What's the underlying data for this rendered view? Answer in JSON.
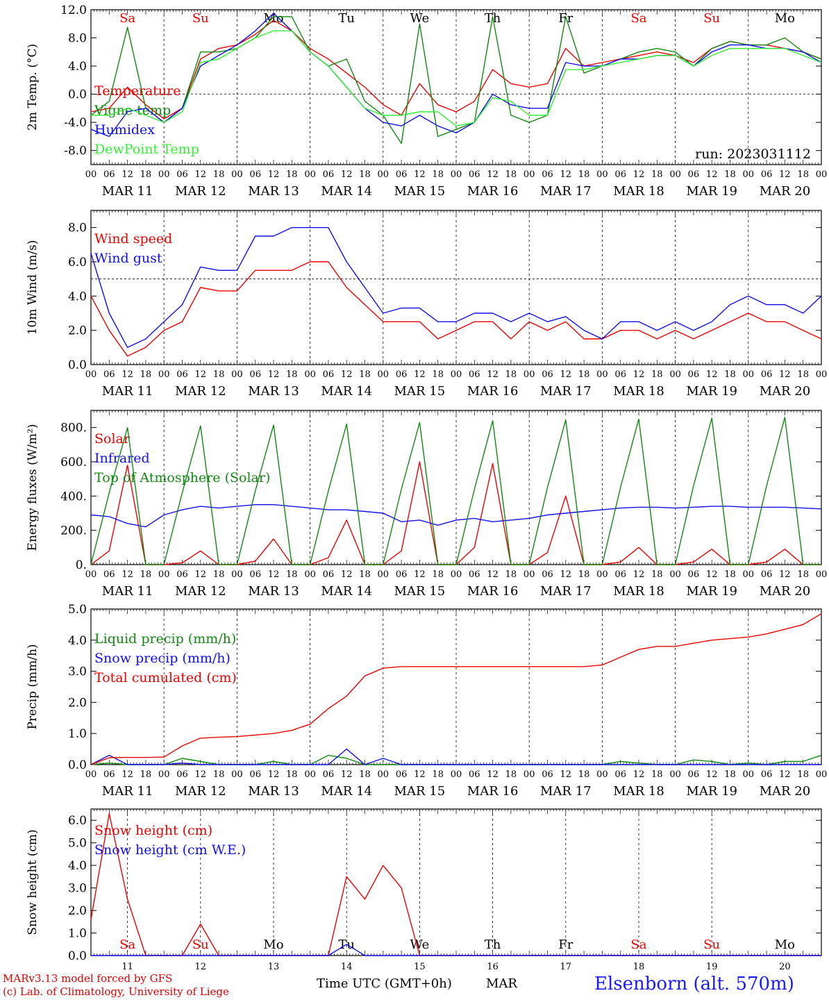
{
  "colors": {
    "red": "#ee0000",
    "green": "#118811",
    "blue": "#1010ee",
    "lightgreen": "#33ee33"
  },
  "x_hour_labels": [
    "00",
    "06",
    "12",
    "18"
  ],
  "date_labels": [
    "MAR 11",
    "MAR 12",
    "MAR 13",
    "MAR 14",
    "MAR 15",
    "MAR 16",
    "MAR 17",
    "MAR 18",
    "MAR 19",
    "MAR 20"
  ],
  "day_names": [
    {
      "label": "Sa",
      "weekend": true
    },
    {
      "label": "Su",
      "weekend": true
    },
    {
      "label": "Mo",
      "weekend": false
    },
    {
      "label": "Tu",
      "weekend": false
    },
    {
      "label": "We",
      "weekend": false
    },
    {
      "label": "Th",
      "weekend": false
    },
    {
      "label": "Fr",
      "weekend": false
    },
    {
      "label": "Sa",
      "weekend": true
    },
    {
      "label": "Su",
      "weekend": true
    },
    {
      "label": "Mo",
      "weekend": false
    }
  ],
  "bottom_day_numbers": [
    "11",
    "12",
    "13",
    "14",
    "15",
    "16",
    "17",
    "18",
    "19",
    "20"
  ],
  "footer": {
    "credit_line1": "MARv3.13 model forced by GFS",
    "credit_line2": "(c) Lab. of Climatology, University of Liege",
    "x_title": "Time UTC (GMT+0h)",
    "month": "MAR",
    "station": "Elsenborn (alt. 570m)"
  },
  "chart_data": [
    {
      "type": "line",
      "ylabel": "2m Temp. (°C)",
      "ylim": [
        -10,
        12
      ],
      "yticks": [
        "12.0",
        "8.0",
        "4.0",
        "0.0",
        "-4.0",
        "-8.0"
      ],
      "hline": 0,
      "annotation": "run: 2023031112",
      "x_days": [
        0,
        0.25,
        0.5,
        0.75,
        1,
        1.25,
        1.5,
        1.75,
        2,
        2.25,
        2.5,
        2.75,
        3,
        3.25,
        3.5,
        3.75,
        4,
        4.25,
        4.5,
        4.75,
        5,
        5.25,
        5.5,
        5.75,
        6,
        6.25,
        6.5,
        6.75,
        7,
        7.25,
        7.5,
        7.75,
        8,
        8.25,
        8.5,
        8.75,
        9,
        9.25,
        9.5,
        9.75,
        10
      ],
      "series": [
        {
          "name": "Temperature",
          "color": "red",
          "values": [
            -2.5,
            -2,
            1,
            -1.5,
            -3.5,
            -2,
            5,
            6.5,
            7,
            8.5,
            10.5,
            9,
            6.5,
            5,
            3,
            1,
            -1.5,
            -3,
            1.5,
            -1.5,
            -2.5,
            -1,
            3.5,
            1.5,
            1,
            1.5,
            6.5,
            4,
            4.5,
            5,
            5.5,
            6,
            5.5,
            4.5,
            6.5,
            7.5,
            7,
            7,
            6.5,
            6,
            5
          ]
        },
        {
          "name": "Vigne temp",
          "color": "green",
          "values": [
            -3,
            -1,
            9.5,
            -2,
            -4,
            -2,
            6,
            6,
            6.5,
            8,
            11,
            11,
            6,
            4,
            5,
            -1,
            -3,
            -7,
            10,
            -6,
            -5,
            -4,
            11,
            -3,
            -4,
            -3,
            11,
            3,
            4,
            5,
            6,
            6.5,
            6,
            4,
            6.5,
            7.5,
            7,
            7,
            8,
            6,
            5
          ]
        },
        {
          "name": "Humidex",
          "color": "blue",
          "values": [
            -5,
            -6,
            -2.5,
            -2,
            -4,
            -2,
            4,
            5.5,
            7,
            9,
            11.5,
            9,
            6,
            4,
            1,
            -2,
            -4,
            -4.5,
            -3,
            -4.5,
            -5.5,
            -4,
            0,
            -1.5,
            -2,
            -2,
            4.5,
            4,
            4,
            5,
            5,
            5.5,
            5.5,
            4,
            6,
            7,
            7,
            6.5,
            6.5,
            6,
            4.5
          ]
        },
        {
          "name": "DewPoint Temp",
          "color": "lightgreen",
          "values": [
            -3,
            -3,
            -2,
            -3,
            -4,
            -2.5,
            4.5,
            5,
            6.5,
            8,
            9,
            9,
            6,
            4,
            1,
            -2,
            -3,
            -3,
            -2.5,
            -2.5,
            -4.5,
            -4,
            -0.5,
            -1,
            -3,
            -3,
            3.5,
            3.5,
            4,
            4.5,
            5,
            5.5,
            5.5,
            4,
            5.5,
            6.5,
            6.5,
            6.5,
            6.5,
            5.5,
            4.5
          ]
        }
      ]
    },
    {
      "type": "line",
      "ylabel": "10m Wind (m/s)",
      "ylim": [
        0,
        9
      ],
      "yticks": [
        "8.0",
        "6.0",
        "4.0",
        "2.0",
        "0.0"
      ],
      "hline": 5,
      "x_days": [
        0,
        0.25,
        0.5,
        0.75,
        1,
        1.25,
        1.5,
        1.75,
        2,
        2.25,
        2.5,
        2.75,
        3,
        3.25,
        3.5,
        3.75,
        4,
        4.25,
        4.5,
        4.75,
        5,
        5.25,
        5.5,
        5.75,
        6,
        6.25,
        6.5,
        6.75,
        7,
        7.25,
        7.5,
        7.75,
        8,
        8.25,
        8.5,
        8.75,
        9,
        9.25,
        9.5,
        9.75,
        10
      ],
      "series": [
        {
          "name": "Wind speed",
          "color": "red",
          "values": [
            4,
            2,
            0.5,
            1,
            2,
            2.5,
            4.5,
            4.3,
            4.3,
            5.5,
            5.5,
            5.5,
            6,
            6,
            4.5,
            3.5,
            2.5,
            2.5,
            2.5,
            1.5,
            2,
            2.5,
            2.5,
            1.5,
            2.5,
            2,
            2.5,
            1.5,
            1.5,
            2,
            2,
            1.5,
            2,
            1.5,
            2,
            2.5,
            3,
            2.5,
            2.5,
            2,
            1.5
          ]
        },
        {
          "name": "Wind gust",
          "color": "blue",
          "values": [
            6.5,
            3,
            1,
            1.5,
            2.5,
            3.5,
            5.7,
            5.5,
            5.5,
            7.5,
            7.5,
            8,
            8,
            8,
            6,
            4.5,
            3,
            3.3,
            3.3,
            2.5,
            2.5,
            3,
            3,
            2.5,
            3,
            2.5,
            2.8,
            2,
            1.5,
            2.5,
            2.5,
            2,
            2.5,
            2,
            2.5,
            3.5,
            4,
            3.5,
            3.5,
            3,
            4
          ]
        }
      ]
    },
    {
      "type": "line",
      "ylabel": "Energy fluxes (W/m²)",
      "ylim": [
        0,
        900
      ],
      "yticks": [
        "800.",
        "600.",
        "400.",
        "200.",
        "0."
      ],
      "x_days": [
        0,
        0.25,
        0.5,
        0.75,
        1,
        1.25,
        1.5,
        1.75,
        2,
        2.25,
        2.5,
        2.75,
        3,
        3.25,
        3.5,
        3.75,
        4,
        4.25,
        4.5,
        4.75,
        5,
        5.25,
        5.5,
        5.75,
        6,
        6.25,
        6.5,
        6.75,
        7,
        7.25,
        7.5,
        7.75,
        8,
        8.25,
        8.5,
        8.75,
        9,
        9.25,
        9.5,
        9.75,
        10
      ],
      "series": [
        {
          "name": "Solar",
          "color": "red",
          "values": [
            0,
            80,
            580,
            0,
            0,
            10,
            80,
            0,
            0,
            20,
            150,
            0,
            0,
            40,
            260,
            0,
            0,
            80,
            600,
            0,
            0,
            100,
            590,
            0,
            0,
            70,
            400,
            0,
            0,
            15,
            100,
            0,
            0,
            15,
            90,
            0,
            0,
            15,
            90,
            0,
            0
          ]
        },
        {
          "name": "Infrared",
          "color": "blue",
          "values": [
            290,
            280,
            240,
            220,
            290,
            320,
            340,
            330,
            340,
            350,
            350,
            340,
            330,
            320,
            320,
            310,
            300,
            250,
            260,
            230,
            260,
            270,
            250,
            260,
            270,
            290,
            300,
            310,
            320,
            330,
            335,
            335,
            330,
            335,
            340,
            340,
            335,
            335,
            335,
            330,
            325
          ]
        },
        {
          "name": "Top of Atmosphere (Solar)",
          "color": "green",
          "values": [
            0,
            420,
            800,
            0,
            0,
            420,
            810,
            0,
            0,
            430,
            815,
            0,
            0,
            430,
            820,
            0,
            0,
            440,
            830,
            0,
            0,
            440,
            840,
            0,
            0,
            450,
            845,
            0,
            0,
            450,
            850,
            0,
            0,
            460,
            855,
            0,
            0,
            460,
            860,
            0,
            0
          ]
        }
      ]
    },
    {
      "type": "line",
      "ylabel": "Precip (mm/h)",
      "ylim": [
        0,
        5
      ],
      "yticks": [
        "5.0",
        "4.0",
        "3.0",
        "2.0",
        "1.0",
        "0.0"
      ],
      "x_days": [
        0,
        0.25,
        0.5,
        0.75,
        1,
        1.25,
        1.5,
        1.75,
        2,
        2.25,
        2.5,
        2.75,
        3,
        3.25,
        3.5,
        3.75,
        4,
        4.25,
        4.5,
        4.75,
        5,
        5.25,
        5.5,
        5.75,
        6,
        6.25,
        6.5,
        6.75,
        7,
        7.25,
        7.5,
        7.75,
        8,
        8.25,
        8.5,
        8.75,
        9,
        9.25,
        9.5,
        9.75,
        10
      ],
      "series": [
        {
          "name": "Liquid precip (mm/h)",
          "color": "green",
          "values": [
            0,
            0.05,
            0,
            0,
            0,
            0.2,
            0.1,
            0,
            0,
            0,
            0.1,
            0,
            0,
            0.3,
            0.2,
            0,
            0,
            0,
            0,
            0,
            0,
            0,
            0,
            0,
            0,
            0,
            0,
            0,
            0,
            0.1,
            0.05,
            0,
            0,
            0.15,
            0.1,
            0,
            0.05,
            0,
            0.1,
            0.1,
            0.3
          ]
        },
        {
          "name": "Snow precip (mm/h)",
          "color": "blue",
          "values": [
            0,
            0.3,
            0,
            0,
            0,
            0.05,
            0,
            0,
            0,
            0,
            0,
            0,
            0,
            0,
            0.5,
            0,
            0.2,
            0,
            0,
            0,
            0,
            0,
            0,
            0,
            0,
            0,
            0,
            0,
            0,
            0,
            0,
            0,
            0,
            0,
            0,
            0,
            0,
            0,
            0,
            0,
            0
          ]
        },
        {
          "name": "Total cumulated (cm)",
          "color": "red",
          "values": [
            0,
            0.22,
            0.23,
            0.23,
            0.24,
            0.6,
            0.85,
            0.88,
            0.9,
            0.95,
            1.0,
            1.1,
            1.3,
            1.8,
            2.2,
            2.85,
            3.1,
            3.15,
            3.15,
            3.15,
            3.15,
            3.15,
            3.15,
            3.15,
            3.15,
            3.15,
            3.15,
            3.15,
            3.2,
            3.45,
            3.7,
            3.8,
            3.8,
            3.9,
            4.0,
            4.05,
            4.1,
            4.2,
            4.35,
            4.5,
            4.85
          ]
        }
      ]
    },
    {
      "type": "line",
      "ylabel": "Snow height (cm)",
      "ylim": [
        0,
        6.5
      ],
      "yticks": [
        "6.0",
        "5.0",
        "4.0",
        "3.0",
        "2.0",
        "1.0",
        "0.0"
      ],
      "x_days": [
        0,
        0.25,
        0.5,
        0.75,
        1,
        1.25,
        1.5,
        1.75,
        2,
        2.25,
        2.5,
        2.75,
        3,
        3.25,
        3.5,
        3.75,
        4,
        4.25,
        4.5,
        4.75,
        5,
        5.25,
        5.5,
        5.75,
        6,
        6.25,
        6.5,
        6.75,
        7,
        7.25,
        7.5,
        7.75,
        8,
        8.25,
        8.5,
        8.75,
        9,
        9.25,
        9.5,
        9.75,
        10
      ],
      "series": [
        {
          "name": "Snow height (cm)",
          "color": "red",
          "values": [
            1.6,
            6.3,
            2.5,
            0,
            0,
            0,
            1.4,
            0,
            0,
            0,
            0,
            0,
            0,
            0,
            3.5,
            2.5,
            4.0,
            3.0,
            0,
            0,
            0,
            0,
            0,
            0,
            0,
            0,
            0,
            0,
            0,
            0,
            0,
            0,
            0,
            0,
            0,
            0,
            0,
            0,
            0,
            0,
            0
          ]
        },
        {
          "name": "Snow height (cm W.E.)",
          "color": "blue",
          "values": [
            0,
            0,
            0,
            0,
            0,
            0,
            0,
            0,
            0,
            0,
            0,
            0,
            0,
            0,
            0.5,
            0,
            0,
            0,
            0,
            0,
            0,
            0,
            0,
            0,
            0,
            0,
            0,
            0,
            0,
            0,
            0,
            0,
            0,
            0,
            0,
            0,
            0,
            0,
            0,
            0,
            0
          ]
        }
      ]
    }
  ]
}
